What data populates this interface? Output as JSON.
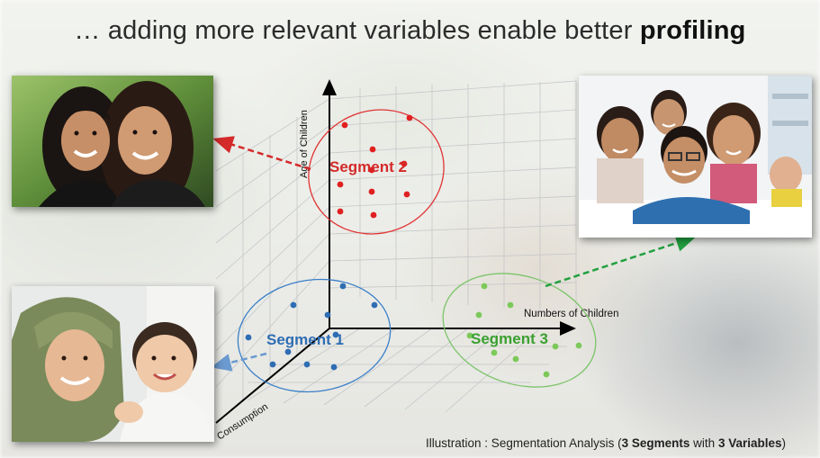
{
  "title": {
    "prefix": "… adding more relevant variables enable better",
    "emphasis": "profiling"
  },
  "axes": {
    "y_label": "Age of Children",
    "x_label": "Numbers of Children",
    "z_label": "Consumption"
  },
  "segments": [
    {
      "label": "Segment 1",
      "color": "#2e6db3",
      "ellipse_color": "#3a7fc8"
    },
    {
      "label": "Segment 2",
      "color": "#d42a2a",
      "ellipse_color": "#e03434"
    },
    {
      "label": "Segment 3",
      "color": "#4ea83a",
      "ellipse_color": "#7cc46a"
    }
  ],
  "photos": [
    {
      "name": "mother-daughter-photo",
      "segment": "Segment 2"
    },
    {
      "name": "family-photo",
      "segment": "Segment 3"
    },
    {
      "name": "mother-baby-photo",
      "segment": "Segment 1"
    }
  ],
  "caption": {
    "prefix": "Illustration : Segmentation Analysis (",
    "bold_1": "3 Segments",
    "middle": " with ",
    "bold_2": "3 Variables",
    "suffix": ")"
  }
}
